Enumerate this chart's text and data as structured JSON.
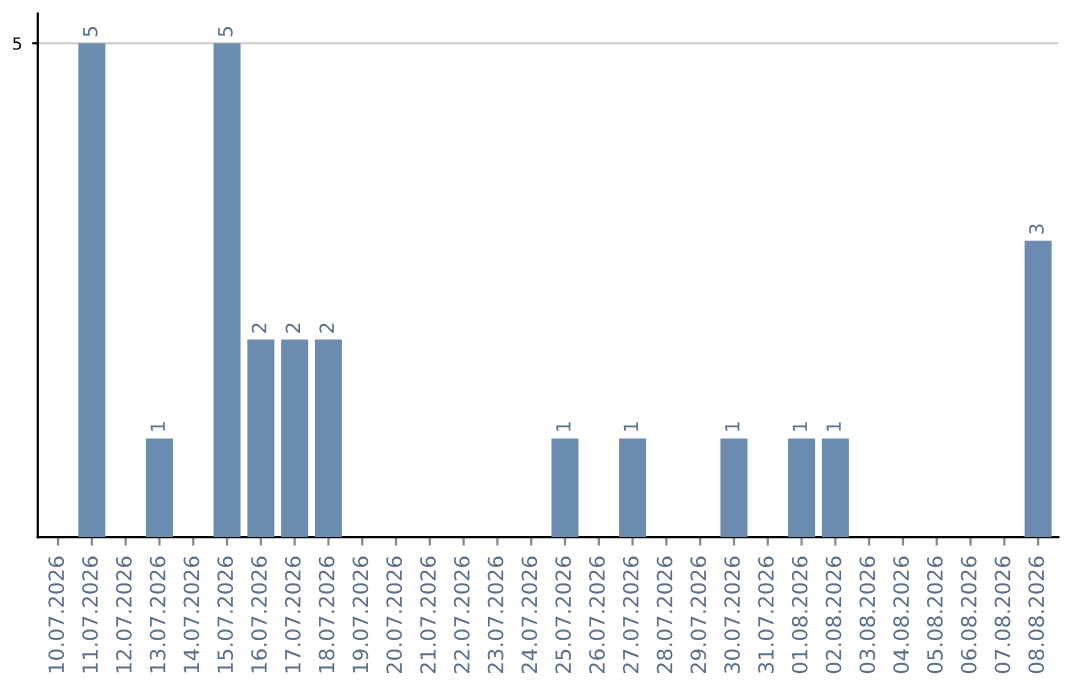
{
  "chart_data": {
    "type": "bar",
    "categories": [
      "10.07.2026",
      "11.07.2026",
      "12.07.2026",
      "13.07.2026",
      "14.07.2026",
      "15.07.2026",
      "16.07.2026",
      "17.07.2026",
      "18.07.2026",
      "19.07.2026",
      "20.07.2026",
      "21.07.2026",
      "22.07.2026",
      "23.07.2026",
      "24.07.2026",
      "25.07.2026",
      "26.07.2026",
      "27.07.2026",
      "28.07.2026",
      "29.07.2026",
      "30.07.2026",
      "31.07.2026",
      "01.08.2026",
      "02.08.2026",
      "03.08.2026",
      "04.08.2026",
      "05.08.2026",
      "06.08.2026",
      "07.08.2026",
      "08.08.2026"
    ],
    "values": [
      0,
      5,
      0,
      1,
      0,
      5,
      2,
      2,
      2,
      0,
      0,
      0,
      0,
      0,
      0,
      1,
      0,
      1,
      0,
      0,
      1,
      0,
      1,
      1,
      0,
      0,
      0,
      0,
      0,
      3
    ],
    "value_labels": [
      null,
      "5",
      null,
      "1",
      null,
      "5",
      "2",
      "2",
      "2",
      null,
      null,
      null,
      null,
      null,
      null,
      "1",
      null,
      "1",
      null,
      null,
      "1",
      null,
      "1",
      "1",
      null,
      null,
      null,
      null,
      null,
      "3"
    ],
    "color": "#6b8cae",
    "ylim": [
      0,
      5.3
    ],
    "yticks": [
      5
    ],
    "grid": "y"
  }
}
